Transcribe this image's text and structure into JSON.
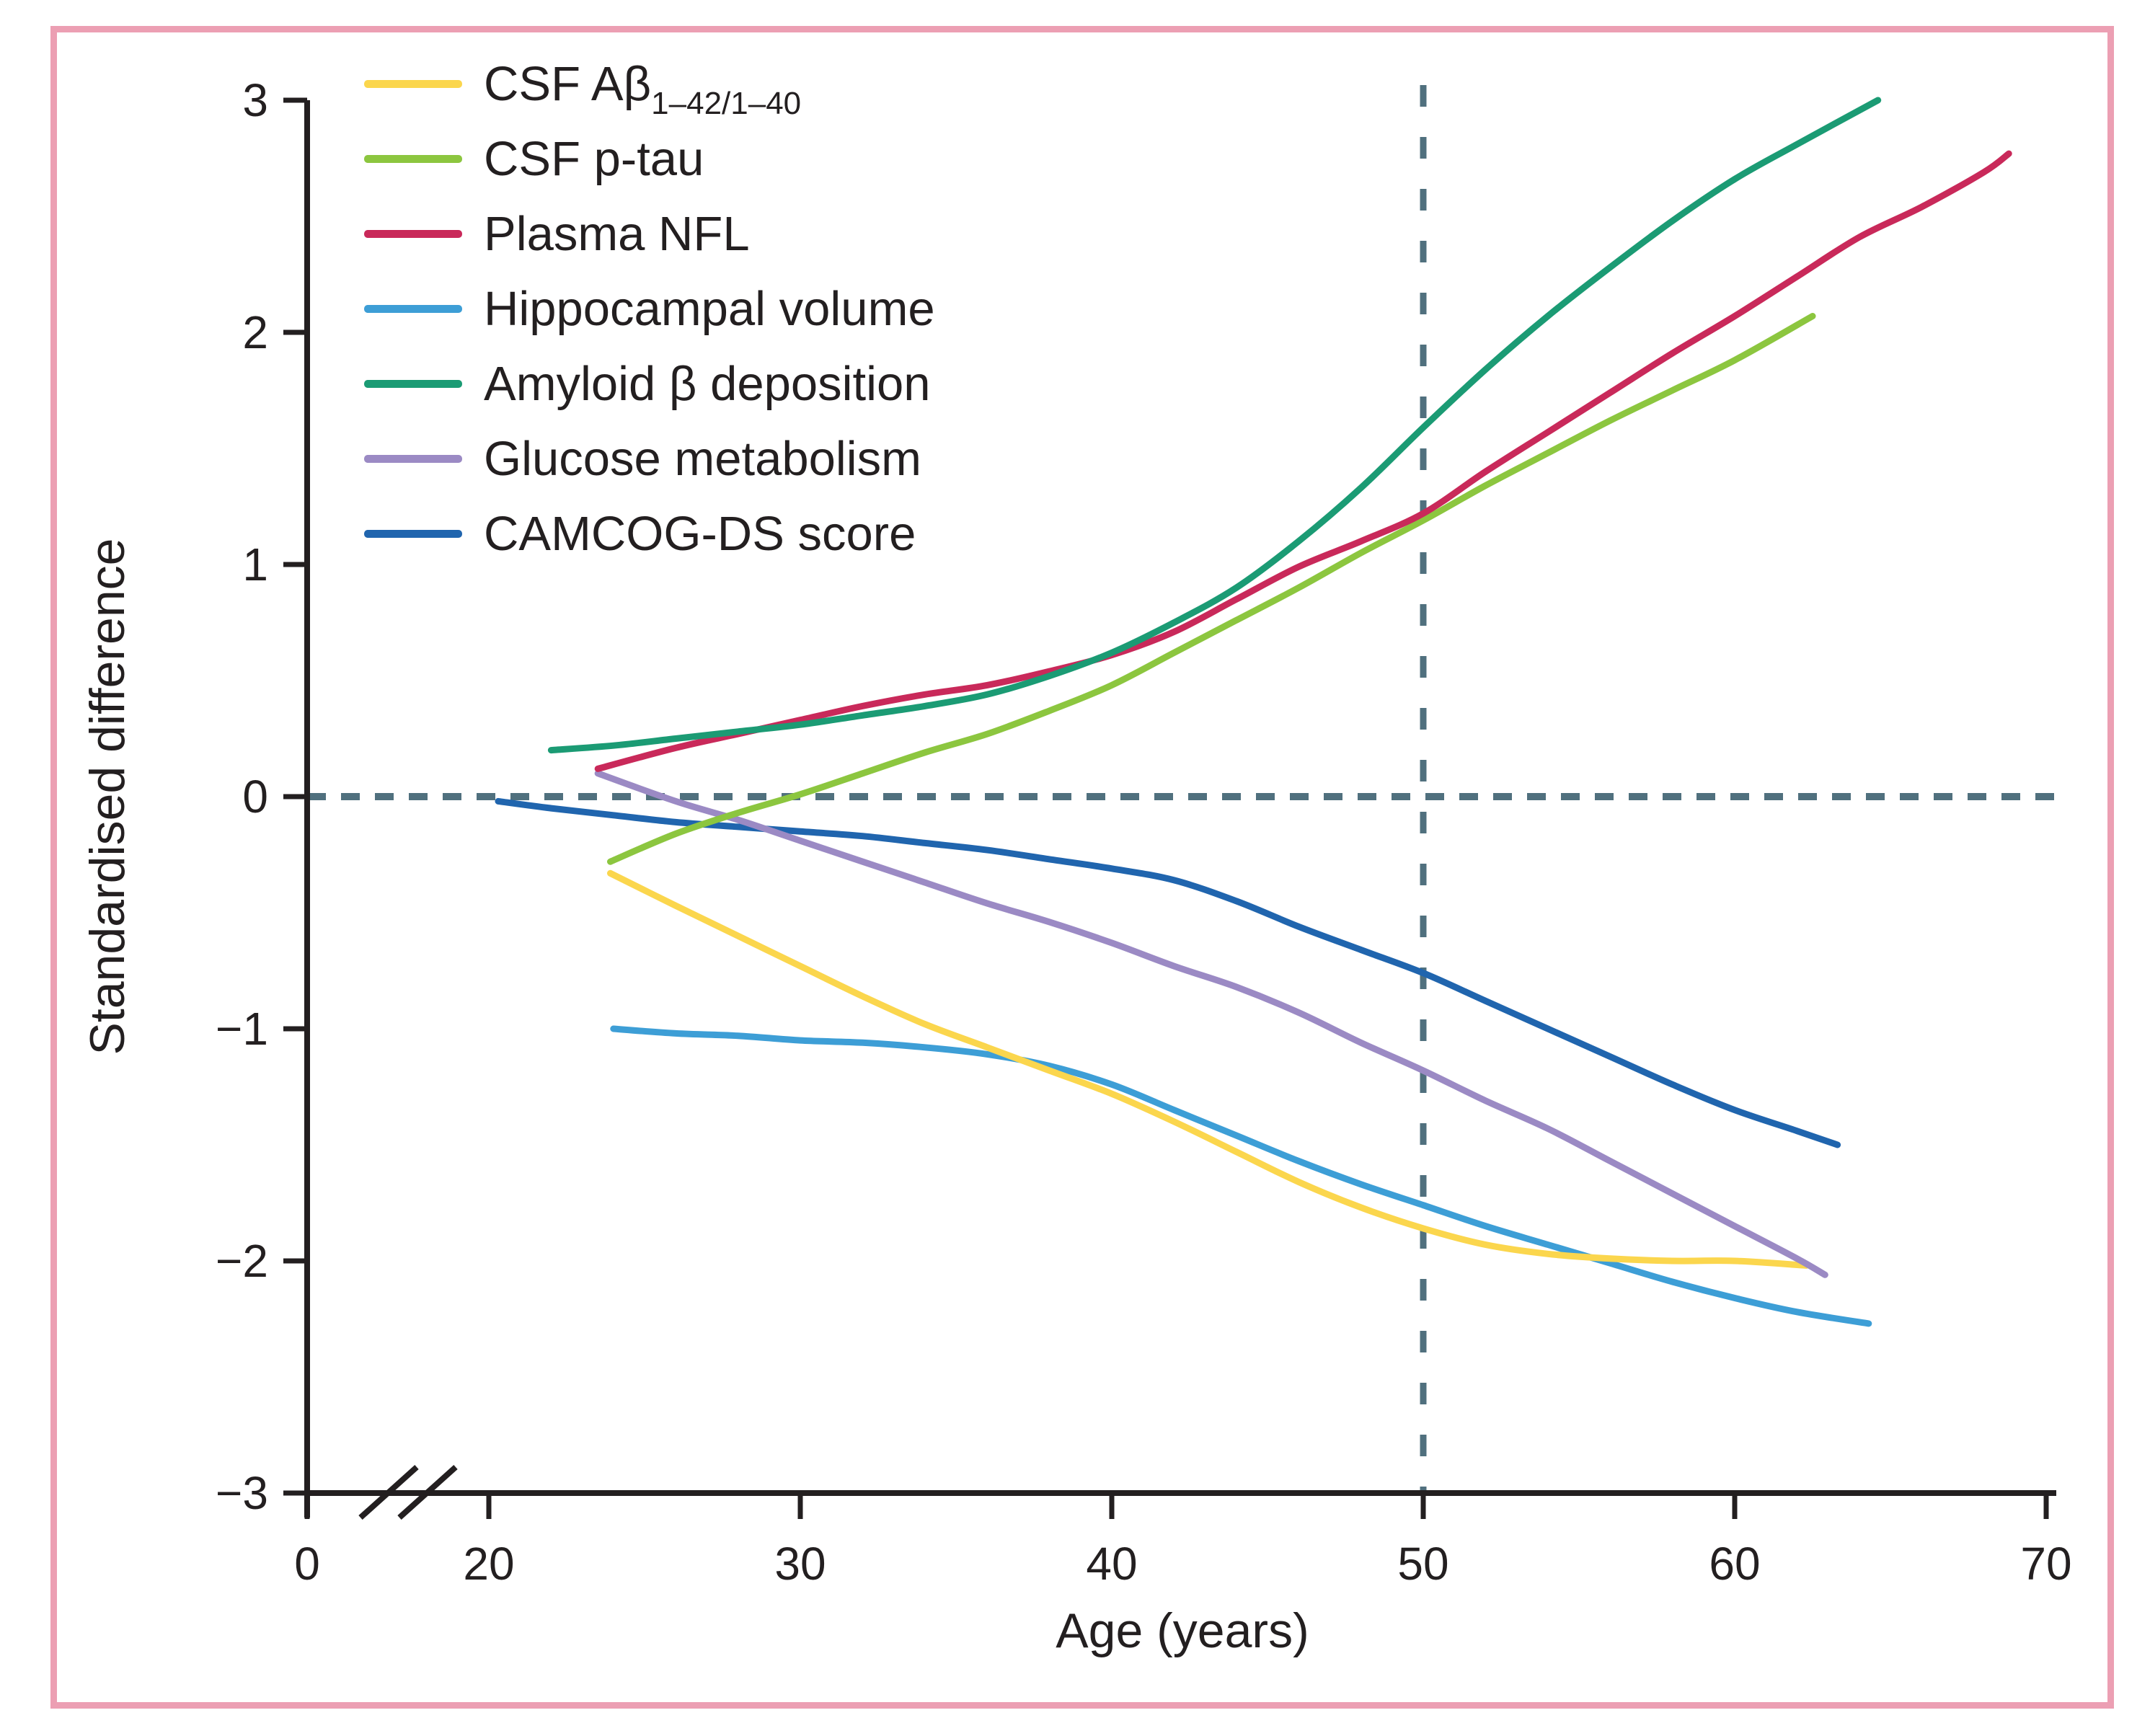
{
  "figure": {
    "background": "#ffffff",
    "border_color": "#ec9fb3",
    "axis_color": "#231f20",
    "reference_line_color": "#50707e",
    "xlabel": "Age (years)",
    "ylabel": "Standardised difference"
  },
  "chart_data": {
    "type": "line",
    "title": "",
    "xlabel": "Age (years)",
    "ylabel": "Standardised difference",
    "xlim": [
      0,
      70
    ],
    "ylim": [
      -3,
      3
    ],
    "x_ticks": [
      0,
      20,
      30,
      40,
      50,
      60,
      70
    ],
    "x_tick_labels": [
      "0",
      "20",
      "30",
      "40",
      "50",
      "60",
      "70"
    ],
    "y_ticks": [
      3,
      2,
      1,
      0,
      -1,
      -2,
      -3
    ],
    "y_tick_labels": [
      "3",
      "2",
      "1",
      "0",
      "−1",
      "−2",
      "−3"
    ],
    "x_axis_break_between": [
      0,
      20
    ],
    "grid": false,
    "legend_position": "top-left",
    "reference_lines": [
      {
        "orientation": "horizontal",
        "value": 0,
        "style": "dashed"
      },
      {
        "orientation": "vertical",
        "value": 50,
        "style": "dashed"
      }
    ],
    "series": [
      {
        "name": "CSF Ab 1-42/1-40",
        "legend_main": "CSF Aβ",
        "legend_sub": "1–42/1–40",
        "color": "#fbd64d",
        "points": [
          [
            23.9,
            -0.33
          ],
          [
            26,
            -0.47
          ],
          [
            28,
            -0.6
          ],
          [
            30,
            -0.73
          ],
          [
            32,
            -0.86
          ],
          [
            34,
            -0.98
          ],
          [
            36,
            -1.08
          ],
          [
            38,
            -1.18
          ],
          [
            40,
            -1.28
          ],
          [
            42,
            -1.4
          ],
          [
            44,
            -1.53
          ],
          [
            46,
            -1.66
          ],
          [
            48,
            -1.77
          ],
          [
            50,
            -1.86
          ],
          [
            52,
            -1.93
          ],
          [
            54,
            -1.97
          ],
          [
            56,
            -1.99
          ],
          [
            58,
            -2.0
          ],
          [
            60,
            -2.0
          ],
          [
            62.3,
            -2.02
          ]
        ]
      },
      {
        "name": "CSF p-tau",
        "legend_main": "CSF p-tau",
        "legend_sub": "",
        "color": "#8cc63f",
        "points": [
          [
            23.9,
            -0.28
          ],
          [
            26,
            -0.16
          ],
          [
            28,
            -0.07
          ],
          [
            30,
            0.01
          ],
          [
            32,
            0.1
          ],
          [
            34,
            0.19
          ],
          [
            36,
            0.27
          ],
          [
            38,
            0.37
          ],
          [
            40,
            0.48
          ],
          [
            42,
            0.62
          ],
          [
            44,
            0.76
          ],
          [
            46,
            0.9
          ],
          [
            48,
            1.05
          ],
          [
            50,
            1.19
          ],
          [
            52,
            1.34
          ],
          [
            54,
            1.48
          ],
          [
            56,
            1.62
          ],
          [
            58,
            1.75
          ],
          [
            60,
            1.88
          ],
          [
            62.5,
            2.07
          ]
        ]
      },
      {
        "name": "Plasma NFL",
        "legend_main": "Plasma NFL",
        "legend_sub": "",
        "color": "#c9295a",
        "points": [
          [
            23.5,
            0.12
          ],
          [
            26,
            0.21
          ],
          [
            28,
            0.27
          ],
          [
            30,
            0.33
          ],
          [
            32,
            0.39
          ],
          [
            34,
            0.44
          ],
          [
            36,
            0.48
          ],
          [
            38,
            0.54
          ],
          [
            40,
            0.61
          ],
          [
            42,
            0.71
          ],
          [
            44,
            0.85
          ],
          [
            46,
            0.99
          ],
          [
            48,
            1.1
          ],
          [
            50,
            1.22
          ],
          [
            52,
            1.4
          ],
          [
            54,
            1.57
          ],
          [
            56,
            1.74
          ],
          [
            58,
            1.91
          ],
          [
            60,
            2.07
          ],
          [
            62,
            2.24
          ],
          [
            64,
            2.41
          ],
          [
            66,
            2.54
          ],
          [
            68,
            2.69
          ],
          [
            68.8,
            2.77
          ]
        ]
      },
      {
        "name": "Hippocampal volume",
        "legend_main": "Hippocampal volume",
        "legend_sub": "",
        "color": "#3d9ed6",
        "points": [
          [
            24,
            -1.0
          ],
          [
            26,
            -1.02
          ],
          [
            28,
            -1.03
          ],
          [
            30,
            -1.05
          ],
          [
            32,
            -1.06
          ],
          [
            34,
            -1.08
          ],
          [
            36,
            -1.11
          ],
          [
            38,
            -1.16
          ],
          [
            40,
            -1.24
          ],
          [
            42,
            -1.35
          ],
          [
            44,
            -1.46
          ],
          [
            46,
            -1.57
          ],
          [
            48,
            -1.67
          ],
          [
            50,
            -1.76
          ],
          [
            52,
            -1.85
          ],
          [
            54,
            -1.93
          ],
          [
            56,
            -2.01
          ],
          [
            58,
            -2.09
          ],
          [
            60,
            -2.16
          ],
          [
            62,
            -2.22
          ],
          [
            64.3,
            -2.27
          ]
        ]
      },
      {
        "name": "Amyloid b deposition",
        "legend_main": "Amyloid β deposition",
        "legend_sub": "",
        "color": "#1b9b74",
        "points": [
          [
            22,
            0.2
          ],
          [
            24,
            0.22
          ],
          [
            26,
            0.25
          ],
          [
            28,
            0.28
          ],
          [
            30,
            0.31
          ],
          [
            32,
            0.35
          ],
          [
            34,
            0.39
          ],
          [
            36,
            0.44
          ],
          [
            38,
            0.52
          ],
          [
            40,
            0.62
          ],
          [
            42,
            0.75
          ],
          [
            44,
            0.9
          ],
          [
            46,
            1.1
          ],
          [
            48,
            1.33
          ],
          [
            50,
            1.59
          ],
          [
            52,
            1.84
          ],
          [
            54,
            2.07
          ],
          [
            56,
            2.28
          ],
          [
            58,
            2.48
          ],
          [
            60,
            2.66
          ],
          [
            62,
            2.81
          ],
          [
            64.6,
            3.0
          ]
        ]
      },
      {
        "name": "Glucose metabolism",
        "legend_main": "Glucose metabolism",
        "legend_sub": "",
        "color": "#9b8ac4",
        "points": [
          [
            23.5,
            0.1
          ],
          [
            26,
            -0.02
          ],
          [
            28,
            -0.1
          ],
          [
            30,
            -0.19
          ],
          [
            32,
            -0.28
          ],
          [
            34,
            -0.37
          ],
          [
            36,
            -0.46
          ],
          [
            38,
            -0.54
          ],
          [
            40,
            -0.63
          ],
          [
            42,
            -0.73
          ],
          [
            44,
            -0.82
          ],
          [
            46,
            -0.93
          ],
          [
            48,
            -1.06
          ],
          [
            50,
            -1.18
          ],
          [
            52,
            -1.31
          ],
          [
            54,
            -1.43
          ],
          [
            56,
            -1.57
          ],
          [
            58,
            -1.71
          ],
          [
            60,
            -1.85
          ],
          [
            62,
            -1.99
          ],
          [
            62.9,
            -2.06
          ]
        ]
      },
      {
        "name": "CAMCOG-DS score",
        "legend_main": "CAMCOG-DS score",
        "legend_sub": "",
        "color": "#2065ae",
        "points": [
          [
            20.3,
            -0.02
          ],
          [
            22,
            -0.05
          ],
          [
            24,
            -0.08
          ],
          [
            26,
            -0.11
          ],
          [
            28,
            -0.13
          ],
          [
            30,
            -0.15
          ],
          [
            32,
            -0.17
          ],
          [
            34,
            -0.2
          ],
          [
            36,
            -0.23
          ],
          [
            38,
            -0.27
          ],
          [
            40,
            -0.31
          ],
          [
            42,
            -0.36
          ],
          [
            44,
            -0.45
          ],
          [
            46,
            -0.56
          ],
          [
            48,
            -0.66
          ],
          [
            50,
            -0.76
          ],
          [
            52,
            -0.88
          ],
          [
            54,
            -1.0
          ],
          [
            56,
            -1.12
          ],
          [
            58,
            -1.24
          ],
          [
            60,
            -1.35
          ],
          [
            62,
            -1.44
          ],
          [
            63.3,
            -1.5
          ]
        ]
      }
    ],
    "draw_order": [
      "Hippocampal volume",
      "CSF Ab 1-42/1-40",
      "CAMCOG-DS score",
      "Glucose metabolism",
      "CSF p-tau",
      "Plasma NFL",
      "Amyloid b deposition"
    ]
  }
}
